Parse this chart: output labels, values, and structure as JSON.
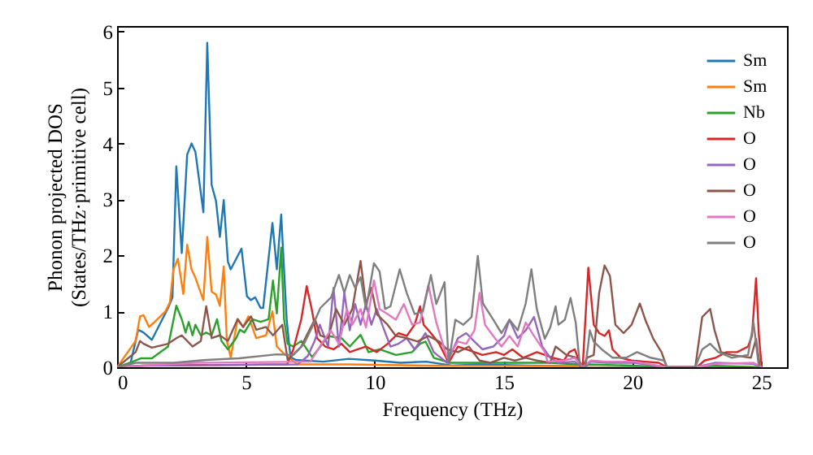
{
  "chart_data": {
    "type": "line",
    "xlabel": "Frequency (THz)",
    "ylabel": "Phonon projected DOS\n(States/THz·primitive cell)",
    "xlim": [
      0,
      26
    ],
    "ylim": [
      0,
      6.1
    ],
    "xticks": [
      0,
      5,
      10,
      15,
      20,
      25
    ],
    "yticks": [
      0,
      1,
      2,
      3,
      4,
      5,
      6
    ],
    "grid": false,
    "legend": "top right",
    "line_style": "solid",
    "marker": "none",
    "series": [
      {
        "name": "Sm",
        "color": "#1f77b4",
        "x": [
          0,
          0.5,
          0.82,
          1.03,
          1.35,
          1.98,
          2.15,
          2.3,
          2.51,
          2.72,
          2.89,
          3.04,
          3.35,
          3.5,
          3.67,
          3.84,
          3.99,
          4.14,
          4.3,
          4.41,
          4.83,
          5.04,
          5.19,
          5.36,
          5.57,
          5.67,
          6.03,
          6.2,
          6.37,
          6.58,
          6.73,
          6.94,
          8,
          9,
          10,
          11,
          12,
          13,
          14,
          16,
          17.9
        ],
        "values": [
          0,
          0.03,
          0.67,
          0.62,
          0.49,
          1.06,
          1.25,
          3.59,
          2.04,
          3.8,
          4.0,
          3.85,
          2.77,
          5.8,
          3.26,
          2.97,
          2.33,
          2.99,
          1.89,
          1.75,
          2.12,
          1.27,
          1.2,
          1.25,
          1.06,
          1.06,
          2.58,
          1.75,
          2.73,
          0.86,
          0.18,
          0.13,
          0.1,
          0.15,
          0.12,
          0.08,
          0.1,
          0.03,
          0.05,
          0.03,
          0.02
        ]
      },
      {
        "name": "Sm",
        "color": "#ff7f0e",
        "x": [
          0,
          0.72,
          0.89,
          1.03,
          1.24,
          1.46,
          1.88,
          2.05,
          2.19,
          2.36,
          2.57,
          2.72,
          2.89,
          3.04,
          3.35,
          3.5,
          3.67,
          3.84,
          3.99,
          4.14,
          4.26,
          4.41,
          4.68,
          4.89,
          5.1,
          5.4,
          5.78,
          6.03,
          6.2,
          6.41,
          7,
          9,
          12,
          17.9,
          18.07,
          21.34,
          25
        ],
        "values": [
          0,
          0.47,
          0.91,
          0.93,
          0.72,
          0.81,
          1.0,
          1.16,
          1.75,
          1.94,
          1.31,
          2.19,
          1.75,
          1.6,
          1.2,
          2.33,
          1.35,
          1.3,
          1.1,
          1.8,
          0.47,
          0.18,
          0.86,
          0.72,
          0.91,
          0.52,
          0.57,
          1.0,
          0.37,
          0.27,
          0.05,
          0.05,
          0.03,
          0.02,
          0,
          0,
          0
        ]
      },
      {
        "name": "Nb",
        "color": "#2ca02c",
        "x": [
          0,
          0.5,
          0.93,
          1.35,
          1.98,
          2.3,
          2.51,
          2.66,
          2.78,
          2.93,
          3.04,
          3.25,
          3.46,
          3.67,
          3.88,
          4.05,
          4.3,
          4.62,
          4.77,
          4.94,
          5.25,
          5.57,
          5.88,
          6.05,
          6.2,
          6.37,
          6.48,
          6.62,
          6.84,
          7.15,
          7.57,
          7.89,
          8.19,
          8.71,
          9.03,
          9.45,
          9.76,
          10.19,
          10.82,
          11.45,
          11.76,
          11.97,
          12.29,
          12.92,
          13.76,
          14.81,
          16.81,
          17.9,
          18.07,
          18.3,
          20,
          21.34,
          22.44,
          23,
          25
        ],
        "values": [
          0,
          0.08,
          0.16,
          0.16,
          0.37,
          1.1,
          0.86,
          0.62,
          0.81,
          0.57,
          0.76,
          0.57,
          0.62,
          0.57,
          0.86,
          0.47,
          0.32,
          0.52,
          0.67,
          0.62,
          0.86,
          0.81,
          0.86,
          1.55,
          0.96,
          2.14,
          0.86,
          0.42,
          0.37,
          0.47,
          0.18,
          0.37,
          0.56,
          0.52,
          0.37,
          0.58,
          0.27,
          0.32,
          0.22,
          0.27,
          0.42,
          0.46,
          0.17,
          0.08,
          0.08,
          0.08,
          0.08,
          0.05,
          0,
          0.05,
          0.03,
          0,
          0,
          0.03,
          0
        ]
      },
      {
        "name": "O",
        "color": "#d62728",
        "x": [
          0,
          1,
          6.6,
          6.84,
          7.15,
          7.36,
          7.55,
          7.76,
          8.08,
          8.4,
          8.71,
          9.03,
          9.34,
          9.66,
          10.08,
          10.5,
          10.92,
          11.24,
          11.55,
          11.76,
          11.9,
          12.18,
          12.5,
          12.87,
          13.23,
          13.55,
          13.87,
          14.18,
          14.71,
          15.02,
          15.34,
          15.76,
          16.29,
          16.92,
          17.34,
          17.55,
          17.76,
          17.97,
          18.07,
          18.29,
          18.5,
          18.71,
          18.92,
          19.09,
          19.23,
          19.55,
          19.97,
          20.5,
          21.02,
          21.34,
          22.5,
          22.8,
          23.23,
          23.65,
          24.07,
          24.49,
          24.64,
          24.8,
          24.91,
          25.02
        ],
        "values": [
          0,
          0.03,
          0.05,
          0.32,
          0.86,
          1.45,
          1.05,
          0.52,
          0.37,
          0.32,
          0.42,
          0.27,
          0.32,
          0.37,
          0.27,
          0.42,
          0.61,
          0.56,
          0.76,
          1.09,
          0.76,
          0.61,
          0.42,
          0.08,
          0.37,
          0.32,
          0.27,
          0.22,
          0.27,
          0.22,
          0.32,
          0.17,
          0.27,
          0.17,
          0.12,
          0.27,
          0.32,
          0.08,
          0,
          1.78,
          0.76,
          0.61,
          0.56,
          0.66,
          0.32,
          0.17,
          0.12,
          0.1,
          0.08,
          0,
          0,
          0.12,
          0.17,
          0.27,
          0.27,
          0.37,
          0.56,
          1.59,
          0.56,
          0
        ]
      },
      {
        "name": "O",
        "color": "#9467bd",
        "x": [
          0,
          1,
          7,
          7.4,
          7.66,
          7.87,
          8.19,
          8.4,
          8.61,
          8.82,
          9.03,
          9.24,
          9.45,
          9.66,
          9.87,
          10.08,
          10.29,
          10.61,
          10.92,
          11.24,
          11.55,
          11.97,
          12.29,
          12.81,
          13.23,
          13.55,
          13.87,
          14.18,
          14.6,
          15.02,
          15.23,
          15.55,
          15.86,
          16.18,
          16.5,
          16.81,
          17.13,
          17.76,
          18.07,
          18.39,
          19.02,
          20.08,
          21.34,
          22.44,
          23.23,
          24.7,
          25.02
        ],
        "values": [
          0,
          0.03,
          0.05,
          0.2,
          0.46,
          0.76,
          0.37,
          1.42,
          0.37,
          1.33,
          0.66,
          1.13,
          0.76,
          1.13,
          0.76,
          1.04,
          0.76,
          0.37,
          0.42,
          0.52,
          0.32,
          0.61,
          0.27,
          0.08,
          0.52,
          0.61,
          0.46,
          0.32,
          0.37,
          0.56,
          0.85,
          0.52,
          0.66,
          0.9,
          0.37,
          0.17,
          0.08,
          0.1,
          0,
          0.1,
          0.08,
          0.08,
          0,
          0,
          0.08,
          0.06,
          0
        ]
      },
      {
        "name": "O",
        "color": "#8c564b",
        "x": [
          0,
          0.72,
          0.89,
          1.03,
          1.35,
          1.98,
          2.3,
          2.51,
          2.72,
          2.93,
          3.25,
          3.46,
          3.67,
          3.99,
          4.3,
          4.68,
          4.89,
          5.2,
          5.4,
          5.78,
          6.05,
          6.41,
          6.62,
          7.15,
          7.36,
          7.68,
          7.89,
          8.19,
          8.5,
          8.82,
          9.13,
          9.45,
          9.66,
          9.87,
          10.08,
          10.5,
          10.82,
          11.24,
          11.66,
          12.08,
          12.5,
          12.81,
          13.23,
          13.65,
          14.07,
          14.49,
          15.02,
          15.44,
          15.86,
          16.29,
          16.81,
          17.02,
          17.44,
          17.86,
          18.07,
          18.24,
          18.5,
          18.71,
          18.92,
          19.13,
          19.34,
          19.66,
          19.97,
          20.29,
          20.5,
          20.81,
          21.13,
          21.34,
          22.44,
          22.71,
          23.02,
          23.19,
          23.44,
          23.86,
          24.28,
          24.6,
          24.8,
          24.95
        ],
        "values": [
          0,
          0.27,
          0.47,
          0.42,
          0.35,
          0.42,
          0.52,
          0.57,
          0.47,
          0.37,
          0.47,
          1.09,
          0.52,
          0.57,
          0.47,
          0.86,
          0.72,
          0.91,
          0.67,
          0.72,
          0.57,
          0.76,
          0.13,
          0.37,
          0.57,
          0.86,
          0.57,
          0.52,
          1.04,
          0.76,
          1.04,
          1.9,
          1.13,
          1.42,
          0.95,
          0.76,
          0.56,
          0.52,
          0.46,
          0.56,
          0.46,
          0.32,
          0.27,
          0.37,
          0.12,
          0.08,
          0.17,
          0.12,
          0.17,
          0.12,
          0.08,
          0.37,
          0.22,
          0.17,
          0,
          0.17,
          0.22,
          1.33,
          1.82,
          1.63,
          0.76,
          0.61,
          0.76,
          1.14,
          0.85,
          0.51,
          0.27,
          0,
          0,
          0.9,
          1.04,
          0.66,
          0.27,
          0.22,
          0.19,
          0.17,
          0.51,
          0
        ]
      },
      {
        "name": "O",
        "color": "#e377c2",
        "x": [
          0,
          3,
          7.5,
          7.87,
          8.29,
          8.61,
          8.92,
          9.13,
          9.45,
          9.66,
          9.97,
          10.19,
          10.5,
          10.82,
          11.13,
          11.45,
          11.76,
          12.08,
          12.39,
          12.81,
          13.23,
          13.55,
          13.87,
          14.07,
          14.28,
          14.6,
          14.92,
          15.23,
          15.55,
          15.86,
          16.18,
          16.6,
          16.71,
          17.34,
          17.76,
          18.07,
          18.39,
          19.02,
          20.08,
          21.34,
          22.44,
          23.23,
          24.7,
          25.02
        ],
        "values": [
          0,
          0.08,
          0.1,
          0.37,
          0.66,
          0.42,
          1.04,
          0.76,
          1.04,
          0.71,
          1.55,
          1.04,
          0.95,
          0.85,
          1.13,
          0.76,
          0.8,
          1.47,
          0.8,
          0.17,
          0.46,
          0.42,
          0.66,
          1.33,
          0.76,
          0.56,
          0.37,
          0.56,
          0.37,
          0.8,
          0.56,
          0.27,
          0.1,
          0.12,
          0.17,
          0,
          0.12,
          0.1,
          0.1,
          0,
          0,
          0.06,
          0.08,
          0
        ]
      },
      {
        "name": "O",
        "color": "#7f7f7f",
        "x": [
          0,
          0.72,
          2.19,
          3.46,
          4.73,
          6.2,
          6.84,
          7.26,
          7.57,
          7.89,
          8.31,
          8.61,
          8.82,
          9.03,
          9.24,
          9.45,
          9.66,
          9.97,
          10.19,
          10.4,
          10.61,
          10.97,
          11.24,
          11.55,
          11.87,
          12.18,
          12.39,
          12.71,
          12.87,
          13.13,
          13.44,
          13.76,
          14.0,
          14.2,
          14.6,
          14.92,
          15.23,
          15.55,
          15.86,
          16.08,
          16.29,
          16.6,
          16.81,
          17.02,
          17.13,
          17.38,
          17.6,
          17.8,
          17.97,
          18.18,
          18.35,
          18.5,
          18.81,
          19.23,
          19.76,
          20.18,
          20.71,
          21.23,
          21.34,
          22.44,
          22.71,
          23.02,
          23.34,
          23.86,
          24.49,
          24.7,
          24.91
        ],
        "values": [
          0,
          0.08,
          0.08,
          0.13,
          0.16,
          0.23,
          0.22,
          0.42,
          0.72,
          1.06,
          1.25,
          1.65,
          1.33,
          1.65,
          1.42,
          1.61,
          1.04,
          1.86,
          1.71,
          1.04,
          1.09,
          1.75,
          1.33,
          0.95,
          1.0,
          1.65,
          1.13,
          1.52,
          0.08,
          0.85,
          0.76,
          0.9,
          1.99,
          1.14,
          0.85,
          0.61,
          0.85,
          0.66,
          1.14,
          1.75,
          1.04,
          0.51,
          0.71,
          1.09,
          0.76,
          0.85,
          1.24,
          0.8,
          0,
          0,
          0.66,
          0.46,
          0.32,
          0.17,
          0.17,
          0.27,
          0.17,
          0.12,
          0,
          0,
          0.32,
          0.42,
          0.27,
          0.17,
          0.22,
          0.8,
          0
        ]
      }
    ]
  }
}
